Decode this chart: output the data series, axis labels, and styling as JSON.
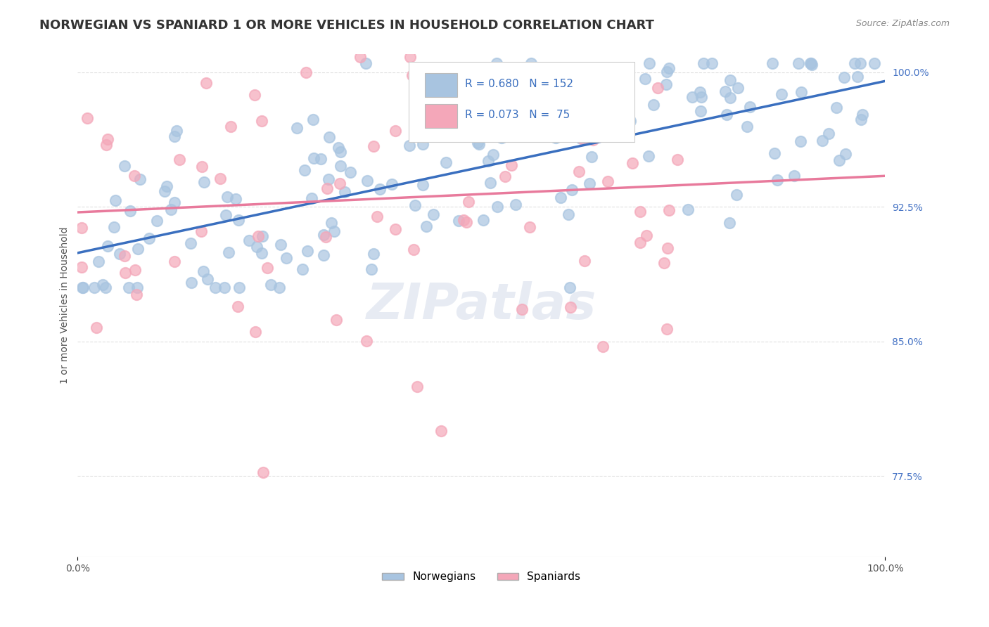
{
  "title": "NORWEGIAN VS SPANIARD 1 OR MORE VEHICLES IN HOUSEHOLD CORRELATION CHART",
  "source": "Source: ZipAtlas.com",
  "ylabel": "1 or more Vehicles in Household",
  "xlim": [
    0.0,
    1.0
  ],
  "ylim": [
    0.73,
    1.01
  ],
  "yticks": [
    0.775,
    0.85,
    0.925,
    1.0
  ],
  "ytick_labels": [
    "77.5%",
    "85.0%",
    "92.5%",
    "100.0%"
  ],
  "xtick_labels": [
    "0.0%",
    "100.0%"
  ],
  "xticks": [
    0.0,
    1.0
  ],
  "norwegian_R": 0.68,
  "norwegian_N": 152,
  "spaniard_R": 0.073,
  "spaniard_N": 75,
  "norwegian_color": "#a8c4e0",
  "spaniard_color": "#f4a7b9",
  "norwegian_line_color": "#3a6fbf",
  "spaniard_line_color": "#e87a9c",
  "watermark_color": "#d0d8e8",
  "background_color": "#ffffff",
  "grid_color": "#e0e0e0",
  "title_color": "#333333",
  "axis_label_color": "#555555",
  "right_tick_color": "#4472c4",
  "seed_norwegian": 42,
  "seed_spaniard": 99
}
